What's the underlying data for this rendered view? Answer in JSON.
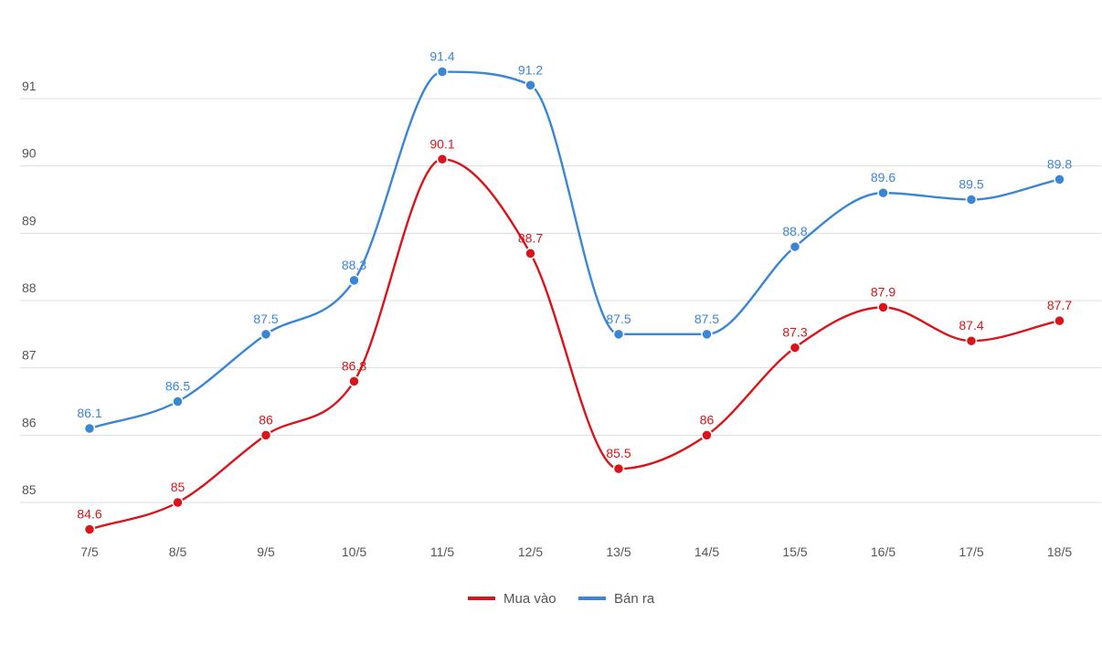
{
  "chart_data": {
    "type": "line",
    "title": "",
    "xlabel": "",
    "ylabel": "",
    "categories": [
      "7/5",
      "8/5",
      "9/5",
      "10/5",
      "11/5",
      "12/5",
      "13/5",
      "14/5",
      "15/5",
      "16/5",
      "17/5",
      "18/5"
    ],
    "y_ticks": [
      85,
      86,
      87,
      88,
      89,
      90,
      91
    ],
    "ylim": [
      84.5,
      91.8
    ],
    "grid": true,
    "legend_position": "bottom-center",
    "series": [
      {
        "name": "Mua vào",
        "color": "#d9141a",
        "values": [
          84.6,
          85,
          86,
          86.8,
          90.1,
          88.7,
          85.5,
          86,
          87.3,
          87.9,
          87.4,
          87.7
        ],
        "labels": [
          "84.6",
          "85",
          "86",
          "86.8",
          "90.1",
          "88.7",
          "85.5",
          "86",
          "87.3",
          "87.9",
          "87.4",
          "87.7"
        ]
      },
      {
        "name": "Bán ra",
        "color": "#3a86d6",
        "values": [
          86.1,
          86.5,
          87.5,
          88.3,
          91.4,
          91.2,
          87.5,
          87.5,
          88.8,
          89.6,
          89.5,
          89.8
        ],
        "labels": [
          "86.1",
          "86.5",
          "87.5",
          "88.3",
          "91.4",
          "91.2",
          "87.5",
          "87.5",
          "88.8",
          "89.6",
          "89.5",
          "89.8"
        ]
      }
    ]
  }
}
